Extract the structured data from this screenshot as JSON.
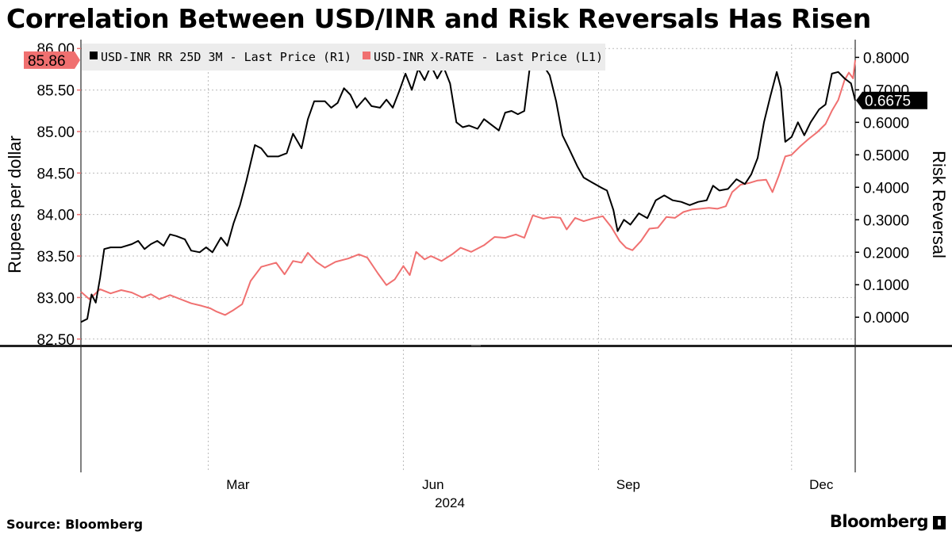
{
  "title": "Correlation Between USD/INR and Risk Reversals Has Risen",
  "source": "Source: Bloomberg",
  "brand": "Bloomberg",
  "chart_data": {
    "type": "line",
    "title": "Correlation Between USD/INR and Risk Reversals Has Risen",
    "x_start": "2024-01-01",
    "x_end": "2024-12-31",
    "xticks": [
      {
        "label": "Mar",
        "date": "2024-03-15"
      },
      {
        "label": "Jun",
        "date": "2024-06-15"
      },
      {
        "label": "Sep",
        "date": "2024-09-15"
      },
      {
        "label": "Dec",
        "date": "2024-12-15"
      }
    ],
    "xgrid": [
      "2024-03-01",
      "2024-06-01",
      "2024-09-01",
      "2024-12-01"
    ],
    "xlabel": "2024",
    "ylabel_left": "Rupees per dollar",
    "ylabel_right": "Risk Reversal",
    "ylim_left": [
      82.45,
      86.05
    ],
    "yticks_left": [
      "82.50",
      "83.00",
      "83.50",
      "84.00",
      "84.50",
      "85.00",
      "85.50",
      "86.00"
    ],
    "ylim_right": [
      -0.08,
      0.84
    ],
    "yticks_right": [
      "0.0000",
      "0.1000",
      "0.2000",
      "0.3000",
      "0.4000",
      "0.5000",
      "0.6000",
      "0.7000",
      "0.8000"
    ],
    "colors": {
      "rr": "#000000",
      "fx": "#f07070"
    },
    "series": [
      {
        "name": "USD-INR RR 25D 3M - Last Price (R1)",
        "axis": "right",
        "key": "rr",
        "last_label": "0.6675",
        "points": [
          [
            "2024-01-01",
            -0.015
          ],
          [
            "2024-01-04",
            -0.005
          ],
          [
            "2024-01-06",
            0.07
          ],
          [
            "2024-01-08",
            0.045
          ],
          [
            "2024-01-10",
            0.12
          ],
          [
            "2024-01-12",
            0.21
          ],
          [
            "2024-01-15",
            0.215
          ],
          [
            "2024-01-20",
            0.215
          ],
          [
            "2024-01-25",
            0.225
          ],
          [
            "2024-01-28",
            0.235
          ],
          [
            "2024-01-31",
            0.21
          ],
          [
            "2024-02-03",
            0.225
          ],
          [
            "2024-02-06",
            0.235
          ],
          [
            "2024-02-09",
            0.22
          ],
          [
            "2024-02-12",
            0.255
          ],
          [
            "2024-02-15",
            0.25
          ],
          [
            "2024-02-19",
            0.24
          ],
          [
            "2024-02-22",
            0.205
          ],
          [
            "2024-02-26",
            0.2
          ],
          [
            "2024-02-29",
            0.215
          ],
          [
            "2024-03-03",
            0.2
          ],
          [
            "2024-03-07",
            0.245
          ],
          [
            "2024-03-10",
            0.22
          ],
          [
            "2024-03-13",
            0.29
          ],
          [
            "2024-03-16",
            0.345
          ],
          [
            "2024-03-19",
            0.42
          ],
          [
            "2024-03-21",
            0.475
          ],
          [
            "2024-03-23",
            0.53
          ],
          [
            "2024-03-26",
            0.52
          ],
          [
            "2024-03-29",
            0.495
          ],
          [
            "2024-04-03",
            0.495
          ],
          [
            "2024-04-07",
            0.505
          ],
          [
            "2024-04-10",
            0.565
          ],
          [
            "2024-04-14",
            0.52
          ],
          [
            "2024-04-17",
            0.61
          ],
          [
            "2024-04-20",
            0.665
          ],
          [
            "2024-04-25",
            0.665
          ],
          [
            "2024-04-28",
            0.645
          ],
          [
            "2024-05-01",
            0.66
          ],
          [
            "2024-05-04",
            0.705
          ],
          [
            "2024-05-07",
            0.685
          ],
          [
            "2024-05-10",
            0.645
          ],
          [
            "2024-05-14",
            0.675
          ],
          [
            "2024-05-17",
            0.65
          ],
          [
            "2024-05-21",
            0.645
          ],
          [
            "2024-05-24",
            0.67
          ],
          [
            "2024-05-27",
            0.645
          ],
          [
            "2024-05-30",
            0.695
          ],
          [
            "2024-06-02",
            0.75
          ],
          [
            "2024-06-05",
            0.7
          ],
          [
            "2024-06-08",
            0.765
          ],
          [
            "2024-06-11",
            0.73
          ],
          [
            "2024-06-14",
            0.775
          ],
          [
            "2024-06-17",
            0.735
          ],
          [
            "2024-06-20",
            0.77
          ],
          [
            "2024-06-23",
            0.72
          ],
          [
            "2024-06-26",
            0.6
          ],
          [
            "2024-06-29",
            0.585
          ],
          [
            "2024-07-02",
            0.59
          ],
          [
            "2024-07-06",
            0.58
          ],
          [
            "2024-07-09",
            0.61
          ],
          [
            "2024-07-12",
            0.595
          ],
          [
            "2024-07-16",
            0.575
          ],
          [
            "2024-07-19",
            0.63
          ],
          [
            "2024-07-22",
            0.635
          ],
          [
            "2024-07-25",
            0.625
          ],
          [
            "2024-07-28",
            0.635
          ],
          [
            "2024-07-31",
            0.79
          ],
          [
            "2024-08-03",
            0.78
          ],
          [
            "2024-08-06",
            0.775
          ],
          [
            "2024-08-09",
            0.745
          ],
          [
            "2024-08-12",
            0.665
          ],
          [
            "2024-08-15",
            0.56
          ],
          [
            "2024-08-18",
            0.52
          ],
          [
            "2024-08-22",
            0.465
          ],
          [
            "2024-08-25",
            0.43
          ],
          [
            "2024-08-29",
            0.415
          ],
          [
            "2024-09-02",
            0.4
          ],
          [
            "2024-09-05",
            0.39
          ],
          [
            "2024-09-08",
            0.33
          ],
          [
            "2024-09-10",
            0.265
          ],
          [
            "2024-09-13",
            0.3
          ],
          [
            "2024-09-16",
            0.285
          ],
          [
            "2024-09-20",
            0.32
          ],
          [
            "2024-09-24",
            0.305
          ],
          [
            "2024-09-28",
            0.36
          ],
          [
            "2024-10-02",
            0.375
          ],
          [
            "2024-10-06",
            0.36
          ],
          [
            "2024-10-10",
            0.355
          ],
          [
            "2024-10-14",
            0.345
          ],
          [
            "2024-10-18",
            0.355
          ],
          [
            "2024-10-22",
            0.36
          ],
          [
            "2024-10-25",
            0.405
          ],
          [
            "2024-10-28",
            0.39
          ],
          [
            "2024-11-01",
            0.395
          ],
          [
            "2024-11-05",
            0.425
          ],
          [
            "2024-11-09",
            0.41
          ],
          [
            "2024-11-12",
            0.44
          ],
          [
            "2024-11-15",
            0.49
          ],
          [
            "2024-11-18",
            0.6
          ],
          [
            "2024-11-21",
            0.68
          ],
          [
            "2024-11-24",
            0.755
          ],
          [
            "2024-11-26",
            0.705
          ],
          [
            "2024-11-28",
            0.54
          ],
          [
            "2024-12-01",
            0.555
          ],
          [
            "2024-12-04",
            0.6
          ],
          [
            "2024-12-07",
            0.56
          ],
          [
            "2024-12-10",
            0.6
          ],
          [
            "2024-12-14",
            0.64
          ],
          [
            "2024-12-17",
            0.655
          ],
          [
            "2024-12-20",
            0.75
          ],
          [
            "2024-12-23",
            0.755
          ],
          [
            "2024-12-26",
            0.735
          ],
          [
            "2024-12-29",
            0.72
          ],
          [
            "2024-12-31",
            0.6675
          ]
        ]
      },
      {
        "name": "USD-INR X-RATE - Last Price (L1)",
        "axis": "left",
        "key": "fx",
        "last_label": "85.86",
        "points": [
          [
            "2024-01-01",
            83.07
          ],
          [
            "2024-01-05",
            82.98
          ],
          [
            "2024-01-10",
            83.1
          ],
          [
            "2024-01-15",
            83.05
          ],
          [
            "2024-01-20",
            83.09
          ],
          [
            "2024-01-25",
            83.06
          ],
          [
            "2024-01-30",
            83.0
          ],
          [
            "2024-02-03",
            83.04
          ],
          [
            "2024-02-07",
            82.98
          ],
          [
            "2024-02-12",
            83.03
          ],
          [
            "2024-02-16",
            82.99
          ],
          [
            "2024-02-22",
            82.93
          ],
          [
            "2024-02-27",
            82.9
          ],
          [
            "2024-03-02",
            82.87
          ],
          [
            "2024-03-05",
            82.83
          ],
          [
            "2024-03-09",
            82.79
          ],
          [
            "2024-03-13",
            82.85
          ],
          [
            "2024-03-17",
            82.92
          ],
          [
            "2024-03-21",
            83.2
          ],
          [
            "2024-03-26",
            83.37
          ],
          [
            "2024-04-02",
            83.42
          ],
          [
            "2024-04-06",
            83.28
          ],
          [
            "2024-04-10",
            83.44
          ],
          [
            "2024-04-14",
            83.42
          ],
          [
            "2024-04-17",
            83.54
          ],
          [
            "2024-04-21",
            83.43
          ],
          [
            "2024-04-25",
            83.36
          ],
          [
            "2024-04-30",
            83.43
          ],
          [
            "2024-05-06",
            83.47
          ],
          [
            "2024-05-11",
            83.52
          ],
          [
            "2024-05-15",
            83.48
          ],
          [
            "2024-05-20",
            83.29
          ],
          [
            "2024-05-24",
            83.15
          ],
          [
            "2024-05-28",
            83.22
          ],
          [
            "2024-06-01",
            83.38
          ],
          [
            "2024-06-04",
            83.27
          ],
          [
            "2024-06-07",
            83.55
          ],
          [
            "2024-06-11",
            83.46
          ],
          [
            "2024-06-14",
            83.5
          ],
          [
            "2024-06-19",
            83.44
          ],
          [
            "2024-06-24",
            83.52
          ],
          [
            "2024-06-28",
            83.6
          ],
          [
            "2024-07-03",
            83.55
          ],
          [
            "2024-07-09",
            83.63
          ],
          [
            "2024-07-14",
            83.73
          ],
          [
            "2024-07-19",
            83.72
          ],
          [
            "2024-07-24",
            83.76
          ],
          [
            "2024-07-28",
            83.72
          ],
          [
            "2024-08-01",
            83.99
          ],
          [
            "2024-08-06",
            83.95
          ],
          [
            "2024-08-10",
            83.97
          ],
          [
            "2024-08-14",
            83.96
          ],
          [
            "2024-08-17",
            83.82
          ],
          [
            "2024-08-21",
            83.96
          ],
          [
            "2024-08-25",
            83.92
          ],
          [
            "2024-08-29",
            83.95
          ],
          [
            "2024-09-03",
            83.98
          ],
          [
            "2024-09-07",
            83.85
          ],
          [
            "2024-09-11",
            83.68
          ],
          [
            "2024-09-14",
            83.6
          ],
          [
            "2024-09-17",
            83.57
          ],
          [
            "2024-09-21",
            83.68
          ],
          [
            "2024-09-25",
            83.83
          ],
          [
            "2024-09-29",
            83.84
          ],
          [
            "2024-10-03",
            83.97
          ],
          [
            "2024-10-07",
            83.96
          ],
          [
            "2024-10-11",
            84.03
          ],
          [
            "2024-10-15",
            84.06
          ],
          [
            "2024-10-19",
            84.07
          ],
          [
            "2024-10-23",
            84.08
          ],
          [
            "2024-10-27",
            84.07
          ],
          [
            "2024-10-31",
            84.1
          ],
          [
            "2024-11-03",
            84.27
          ],
          [
            "2024-11-07",
            84.36
          ],
          [
            "2024-11-11",
            84.38
          ],
          [
            "2024-11-15",
            84.41
          ],
          [
            "2024-11-19",
            84.42
          ],
          [
            "2024-11-22",
            84.27
          ],
          [
            "2024-11-25",
            84.47
          ],
          [
            "2024-11-28",
            84.7
          ],
          [
            "2024-12-01",
            84.72
          ],
          [
            "2024-12-05",
            84.82
          ],
          [
            "2024-12-09",
            84.91
          ],
          [
            "2024-12-13",
            84.99
          ],
          [
            "2024-12-17",
            85.09
          ],
          [
            "2024-12-20",
            85.25
          ],
          [
            "2024-12-23",
            85.38
          ],
          [
            "2024-12-26",
            85.62
          ],
          [
            "2024-12-28",
            85.71
          ],
          [
            "2024-12-30",
            85.64
          ],
          [
            "2024-12-31",
            85.86
          ]
        ]
      }
    ]
  }
}
